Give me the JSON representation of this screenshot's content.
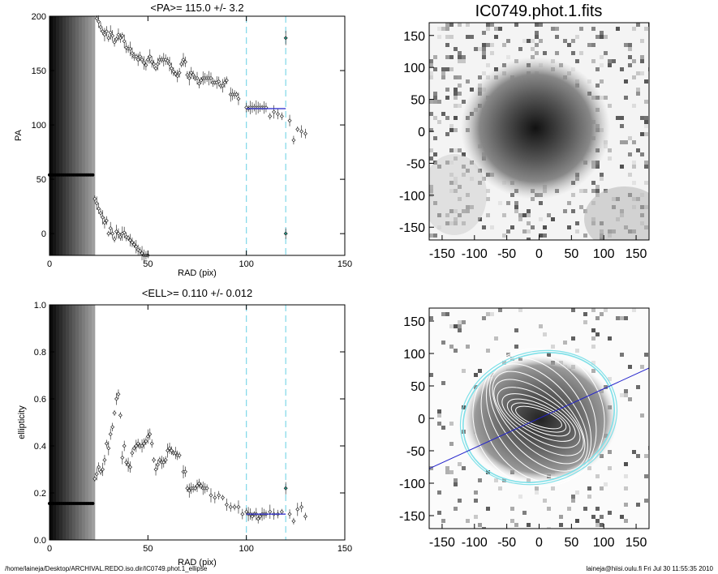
{
  "footer": {
    "left": "/home/laineja/Desktop/ARCHIVAL.REDO.iso.dir/IC0749.phot.1_ellipse",
    "right": "laineja@hiisi.oulu.fi  Fri Jul 30 11:55:35 2010"
  },
  "colors": {
    "fit_line": "#2222cc",
    "marker_line": "#7fd8e8",
    "highlight_point": "#28a090",
    "contour": "#ffffff",
    "ellipse_outer": "#7fe0e8"
  },
  "chart_data": [
    {
      "type": "scatter",
      "title": "<PA>= 115.0 +/-   3.2",
      "xlabel": "RAD (pix)",
      "ylabel": "PA",
      "xlim": [
        0,
        150
      ],
      "ylim": [
        -20,
        200
      ],
      "x_ticks": [
        "0",
        "50",
        "100",
        "150"
      ],
      "y_ticks": [
        "0",
        "50",
        "100",
        "150",
        "200"
      ],
      "vlines": [
        100,
        120
      ],
      "fit": {
        "x": [
          100,
          120
        ],
        "y": 115.0
      },
      "flat_segment": {
        "x": [
          0,
          22
        ],
        "y": 54
      },
      "points": [
        [
          24,
          198
        ],
        [
          25,
          195
        ],
        [
          26,
          190
        ],
        [
          27,
          186
        ],
        [
          28,
          183
        ],
        [
          29,
          186
        ],
        [
          30,
          180
        ],
        [
          31,
          185
        ],
        [
          32,
          182
        ],
        [
          33,
          176
        ],
        [
          34,
          179
        ],
        [
          35,
          183
        ],
        [
          36,
          180
        ],
        [
          37,
          182
        ],
        [
          38,
          177
        ],
        [
          39,
          171
        ],
        [
          40,
          170
        ],
        [
          41,
          170
        ],
        [
          42,
          166
        ],
        [
          43,
          163
        ],
        [
          44,
          163
        ],
        [
          45,
          160
        ],
        [
          46,
          163
        ],
        [
          47,
          160
        ],
        [
          48,
          157
        ],
        [
          49,
          155
        ],
        [
          50,
          160
        ],
        [
          51,
          163
        ],
        [
          52,
          158
        ],
        [
          53,
          156
        ],
        [
          54,
          152
        ],
        [
          55,
          156
        ],
        [
          56,
          160
        ],
        [
          57,
          160
        ],
        [
          58,
          160
        ],
        [
          59,
          160
        ],
        [
          60,
          159
        ],
        [
          61,
          156
        ],
        [
          62,
          152
        ],
        [
          63,
          149
        ],
        [
          64,
          147
        ],
        [
          65,
          145
        ],
        [
          66,
          148
        ],
        [
          67,
          156
        ],
        [
          68,
          160
        ],
        [
          69,
          158
        ],
        [
          70,
          146
        ],
        [
          71,
          143
        ],
        [
          72,
          148
        ],
        [
          73,
          146
        ],
        [
          74,
          143
        ],
        [
          75,
          143
        ],
        [
          76,
          138
        ],
        [
          77,
          141
        ],
        [
          78,
          143
        ],
        [
          79,
          143
        ],
        [
          80,
          143
        ],
        [
          81,
          143
        ],
        [
          82,
          143
        ],
        [
          83,
          139
        ],
        [
          84,
          139
        ],
        [
          85,
          139
        ],
        [
          86,
          140
        ],
        [
          87,
          136
        ],
        [
          88,
          136
        ],
        [
          89,
          139
        ],
        [
          90,
          141
        ],
        [
          92,
          128
        ],
        [
          93,
          128
        ],
        [
          94,
          128
        ],
        [
          95,
          128
        ],
        [
          96,
          124
        ],
        [
          100,
          116
        ],
        [
          101,
          115
        ],
        [
          102,
          116
        ],
        [
          103,
          116
        ],
        [
          104,
          116
        ],
        [
          105,
          116
        ],
        [
          106,
          116
        ],
        [
          107,
          116
        ],
        [
          108,
          116
        ],
        [
          109,
          116
        ],
        [
          110,
          116
        ],
        [
          112,
          108
        ],
        [
          114,
          112
        ],
        [
          116,
          110
        ],
        [
          118,
          108
        ],
        [
          120,
          180
        ],
        [
          122,
          104
        ],
        [
          124,
          86
        ],
        [
          126,
          96
        ],
        [
          128,
          94
        ],
        [
          130,
          92
        ],
        [
          23,
          32
        ],
        [
          24,
          28
        ],
        [
          25,
          23
        ],
        [
          26,
          19
        ],
        [
          27,
          15
        ],
        [
          28,
          10
        ],
        [
          29,
          12
        ],
        [
          30,
          0
        ],
        [
          31,
          5
        ],
        [
          32,
          0
        ],
        [
          33,
          -5
        ],
        [
          34,
          2
        ],
        [
          35,
          0
        ],
        [
          36,
          -3
        ],
        [
          37,
          0
        ],
        [
          38,
          1
        ],
        [
          39,
          -3
        ],
        [
          40,
          -4
        ],
        [
          41,
          -6
        ],
        [
          42,
          -8
        ],
        [
          43,
          -10
        ],
        [
          44,
          -12
        ],
        [
          45,
          -15
        ],
        [
          46,
          -16
        ],
        [
          47,
          -18
        ],
        [
          48,
          -20
        ],
        [
          49,
          -20
        ],
        [
          50,
          -20
        ],
        [
          52,
          -21
        ],
        [
          55,
          -21
        ],
        [
          58,
          -21
        ],
        [
          60,
          -21
        ],
        [
          120,
          0
        ]
      ]
    },
    {
      "type": "scatter",
      "title": "<ELL>= 0.110 +/-  0.012",
      "xlabel": "RAD (pix)",
      "ylabel": "ellipticity",
      "xlim": [
        0,
        150
      ],
      "ylim": [
        0,
        1.0
      ],
      "x_ticks": [
        "0",
        "50",
        "100",
        "150"
      ],
      "y_ticks": [
        "0.0",
        "0.2",
        "0.4",
        "0.6",
        "0.8",
        "1.0"
      ],
      "vlines": [
        100,
        120
      ],
      "fit": {
        "x": [
          100,
          120
        ],
        "y": 0.11
      },
      "flat_segment": {
        "x": [
          0,
          22
        ],
        "y": 0.155
      },
      "points": [
        [
          23,
          0.26
        ],
        [
          24,
          0.28
        ],
        [
          25,
          0.31
        ],
        [
          26,
          0.29
        ],
        [
          27,
          0.3
        ],
        [
          28,
          0.34
        ],
        [
          29,
          0.41
        ],
        [
          30,
          0.39
        ],
        [
          31,
          0.45
        ],
        [
          32,
          0.48
        ],
        [
          33,
          0.54
        ],
        [
          34,
          0.6
        ],
        [
          35,
          0.62
        ],
        [
          36,
          0.53
        ],
        [
          37,
          0.35
        ],
        [
          38,
          0.4
        ],
        [
          39,
          0.33
        ],
        [
          40,
          0.32
        ],
        [
          41,
          0.31
        ],
        [
          42,
          0.37
        ],
        [
          43,
          0.39
        ],
        [
          44,
          0.4
        ],
        [
          45,
          0.41
        ],
        [
          46,
          0.4
        ],
        [
          47,
          0.4
        ],
        [
          48,
          0.41
        ],
        [
          49,
          0.42
        ],
        [
          50,
          0.44
        ],
        [
          51,
          0.45
        ],
        [
          52,
          0.41
        ],
        [
          53,
          0.34
        ],
        [
          54,
          0.3
        ],
        [
          55,
          0.32
        ],
        [
          56,
          0.34
        ],
        [
          57,
          0.33
        ],
        [
          58,
          0.33
        ],
        [
          59,
          0.34
        ],
        [
          60,
          0.38
        ],
        [
          61,
          0.39
        ],
        [
          62,
          0.38
        ],
        [
          63,
          0.37
        ],
        [
          64,
          0.37
        ],
        [
          65,
          0.36
        ],
        [
          66,
          0.36
        ],
        [
          68,
          0.29
        ],
        [
          69,
          0.29
        ],
        [
          70,
          0.22
        ],
        [
          71,
          0.21
        ],
        [
          72,
          0.22
        ],
        [
          73,
          0.22
        ],
        [
          74,
          0.22
        ],
        [
          75,
          0.23
        ],
        [
          76,
          0.24
        ],
        [
          77,
          0.23
        ],
        [
          78,
          0.22
        ],
        [
          79,
          0.22
        ],
        [
          80,
          0.22
        ],
        [
          82,
          0.19
        ],
        [
          84,
          0.18
        ],
        [
          86,
          0.19
        ],
        [
          88,
          0.18
        ],
        [
          90,
          0.15
        ],
        [
          92,
          0.14
        ],
        [
          94,
          0.14
        ],
        [
          96,
          0.14
        ],
        [
          98,
          0.11
        ],
        [
          100,
          0.12
        ],
        [
          101,
          0.11
        ],
        [
          102,
          0.11
        ],
        [
          103,
          0.1
        ],
        [
          104,
          0.11
        ],
        [
          105,
          0.11
        ],
        [
          106,
          0.09
        ],
        [
          107,
          0.1
        ],
        [
          108,
          0.11
        ],
        [
          109,
          0.11
        ],
        [
          110,
          0.11
        ],
        [
          112,
          0.12
        ],
        [
          114,
          0.11
        ],
        [
          116,
          0.11
        ],
        [
          118,
          0.12
        ],
        [
          120,
          0.22
        ],
        [
          122,
          0.11
        ],
        [
          124,
          0.08
        ],
        [
          126,
          0.13
        ],
        [
          128,
          0.14
        ],
        [
          130,
          0.1
        ]
      ]
    },
    {
      "type": "heatmap",
      "title": "IC0749.phot.1.fits",
      "xlim": [
        -170,
        170
      ],
      "ylim": [
        -170,
        170
      ],
      "x_ticks": [
        "-150",
        "-100",
        "-50",
        "0",
        "50",
        "100",
        "150"
      ],
      "y_ticks": [
        "-150",
        "-100",
        "-50",
        "0",
        "50",
        "100",
        "150"
      ]
    },
    {
      "type": "heatmap",
      "title": "",
      "xlim": [
        -170,
        170
      ],
      "ylim": [
        -170,
        170
      ],
      "x_ticks": [
        "-150",
        "-100",
        "-50",
        "0",
        "50",
        "100",
        "150"
      ],
      "y_ticks": [
        "-150",
        "-100",
        "-50",
        "0",
        "50",
        "100",
        "150"
      ],
      "overlay": "isophote ellipses",
      "line_pa": 115.0
    }
  ]
}
